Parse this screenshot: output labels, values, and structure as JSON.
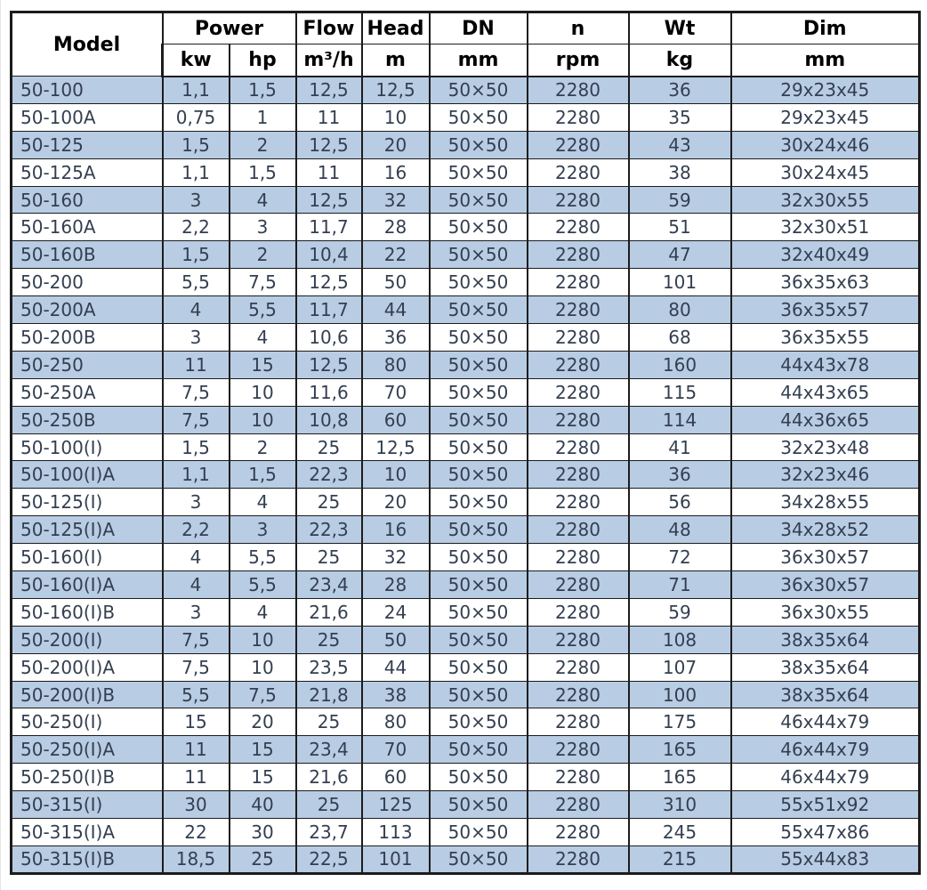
{
  "table": {
    "header": {
      "model": "Model",
      "power": "Power",
      "kw": "kw",
      "hp": "hp",
      "flow": "Flow",
      "flow_unit": "m³/h",
      "head": "Head",
      "head_unit": "m",
      "dn": "DN",
      "dn_unit": "mm",
      "n": "n",
      "n_unit": "rpm",
      "wt": "Wt",
      "wt_unit": "kg",
      "dim": "Dim",
      "dim_unit": "mm"
    },
    "rows": [
      [
        "50-100",
        "1,1",
        "1,5",
        "12,5",
        "12,5",
        "50×50",
        "2280",
        "36",
        "29x23x45"
      ],
      [
        "50-100A",
        "0,75",
        "1",
        "11",
        "10",
        "50×50",
        "2280",
        "35",
        "29x23x45"
      ],
      [
        "50-125",
        "1,5",
        "2",
        "12,5",
        "20",
        "50×50",
        "2280",
        "43",
        "30x24x46"
      ],
      [
        "50-125A",
        "1,1",
        "1,5",
        "11",
        "16",
        "50×50",
        "2280",
        "38",
        "30x24x45"
      ],
      [
        "50-160",
        "3",
        "4",
        "12,5",
        "32",
        "50×50",
        "2280",
        "59",
        "32x30x55"
      ],
      [
        "50-160A",
        "2,2",
        "3",
        "11,7",
        "28",
        "50×50",
        "2280",
        "51",
        "32x30x51"
      ],
      [
        "50-160B",
        "1,5",
        "2",
        "10,4",
        "22",
        "50×50",
        "2280",
        "47",
        "32x40x49"
      ],
      [
        "50-200",
        "5,5",
        "7,5",
        "12,5",
        "50",
        "50×50",
        "2280",
        "101",
        "36x35x63"
      ],
      [
        "50-200A",
        "4",
        "5,5",
        "11,7",
        "44",
        "50×50",
        "2280",
        "80",
        "36x35x57"
      ],
      [
        "50-200B",
        "3",
        "4",
        "10,6",
        "36",
        "50×50",
        "2280",
        "68",
        "36x35x55"
      ],
      [
        "50-250",
        "11",
        "15",
        "12,5",
        "80",
        "50×50",
        "2280",
        "160",
        "44x43x78"
      ],
      [
        "50-250A",
        "7,5",
        "10",
        "11,6",
        "70",
        "50×50",
        "2280",
        "115",
        "44x43x65"
      ],
      [
        "50-250B",
        "7,5",
        "10",
        "10,8",
        "60",
        "50×50",
        "2280",
        "114",
        "44x36x65"
      ],
      [
        "50-100(I)",
        "1,5",
        "2",
        "25",
        "12,5",
        "50×50",
        "2280",
        "41",
        "32x23x48"
      ],
      [
        "50-100(I)A",
        "1,1",
        "1,5",
        "22,3",
        "10",
        "50×50",
        "2280",
        "36",
        "32x23x46"
      ],
      [
        "50-125(I)",
        "3",
        "4",
        "25",
        "20",
        "50×50",
        "2280",
        "56",
        "34x28x55"
      ],
      [
        "50-125(I)A",
        "2,2",
        "3",
        "22,3",
        "16",
        "50×50",
        "2280",
        "48",
        "34x28x52"
      ],
      [
        "50-160(I)",
        "4",
        "5,5",
        "25",
        "32",
        "50×50",
        "2280",
        "72",
        "36x30x57"
      ],
      [
        "50-160(I)A",
        "4",
        "5,5",
        "23,4",
        "28",
        "50×50",
        "2280",
        "71",
        "36x30x57"
      ],
      [
        "50-160(I)B",
        "3",
        "4",
        "21,6",
        "24",
        "50×50",
        "2280",
        "59",
        "36x30x55"
      ],
      [
        "50-200(I)",
        "7,5",
        "10",
        "25",
        "50",
        "50×50",
        "2280",
        "108",
        "38x35x64"
      ],
      [
        "50-200(I)A",
        "7,5",
        "10",
        "23,5",
        "44",
        "50×50",
        "2280",
        "107",
        "38x35x64"
      ],
      [
        "50-200(I)B",
        "5,5",
        "7,5",
        "21,8",
        "38",
        "50×50",
        "2280",
        "100",
        "38x35x64"
      ],
      [
        "50-250(I)",
        "15",
        "20",
        "25",
        "80",
        "50×50",
        "2280",
        "175",
        "46x44x79"
      ],
      [
        "50-250(I)A",
        "11",
        "15",
        "23,4",
        "70",
        "50×50",
        "2280",
        "165",
        "46x44x79"
      ],
      [
        "50-250(I)B",
        "11",
        "15",
        "21,6",
        "60",
        "50×50",
        "2280",
        "165",
        "46x44x79"
      ],
      [
        "50-315(I)",
        "30",
        "40",
        "25",
        "125",
        "50×50",
        "2280",
        "310",
        "55x51x92"
      ],
      [
        "50-315(I)A",
        "22",
        "30",
        "23,7",
        "113",
        "50×50",
        "2280",
        "245",
        "55x47x86"
      ],
      [
        "50-315(I)B",
        "18,5",
        "25",
        "22,5",
        "101",
        "50×50",
        "2280",
        "215",
        "55x44x83"
      ]
    ]
  },
  "colors": {
    "row_alt_bg": "#b8cce4",
    "row_bg": "#ffffff",
    "data_text": "#333f50",
    "header_text": "#000000",
    "border": "#1c1c1c"
  }
}
